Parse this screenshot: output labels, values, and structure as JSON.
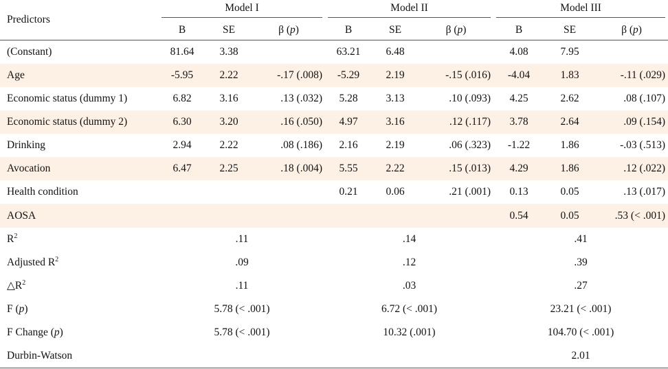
{
  "header": {
    "predictors": "Predictors",
    "models": [
      "Model I",
      "Model II",
      "Model III"
    ],
    "b": "B",
    "se": "SE",
    "beta": "β",
    "beta_p": "p"
  },
  "rows": [
    {
      "label": "(Constant)",
      "shaded": false,
      "cells": [
        "81.64",
        "3.38",
        "",
        "63.21",
        "6.48",
        "",
        "4.08",
        "7.95",
        ""
      ]
    },
    {
      "label": "Age",
      "shaded": true,
      "cells": [
        "-5.95",
        "2.22",
        "-.17 (.008)",
        "-5.29",
        "2.19",
        "-.15 (.016)",
        "-4.04",
        "1.83",
        "-.11 (.029)"
      ]
    },
    {
      "label": "Economic status (dummy 1)",
      "shaded": false,
      "cells": [
        "6.82",
        "3.16",
        ".13 (.032)",
        "5.28",
        "3.13",
        ".10 (.093)",
        "4.25",
        "2.62",
        ".08 (.107)"
      ]
    },
    {
      "label": "Economic status (dummy 2)",
      "shaded": true,
      "cells": [
        "6.30",
        "3.20",
        ".16 (.050)",
        "4.97",
        "3.16",
        ".12 (.117)",
        "3.78",
        "2.64",
        ".09 (.154)"
      ]
    },
    {
      "label": "Drinking",
      "shaded": false,
      "cells": [
        "2.94",
        "2.22",
        ".08 (.186)",
        "2.16",
        "2.19",
        ".06 (.323)",
        "-1.22",
        "1.86",
        "-.03 (.513)"
      ]
    },
    {
      "label": "Avocation",
      "shaded": true,
      "cells": [
        "6.47",
        "2.25",
        ".18 (.004)",
        "5.55",
        "2.22",
        ".15 (.013)",
        "4.29",
        "1.86",
        ".12 (.022)"
      ]
    },
    {
      "label": "Health condition",
      "shaded": false,
      "cells": [
        "",
        "",
        "",
        "0.21",
        "0.06",
        ".21 (.001)",
        "0.13",
        "0.05",
        ".13 (.017)"
      ]
    },
    {
      "label": " AOSA",
      "shaded": true,
      "cells": [
        "",
        "",
        "",
        "",
        "",
        "",
        "0.54",
        "0.05",
        ".53 (< .001)"
      ]
    }
  ],
  "stats": [
    {
      "key": "r2",
      "label_main": "R",
      "label_sup": "2",
      "label_prefix": "",
      "values": [
        ".11",
        ".14",
        ".41"
      ]
    },
    {
      "key": "adj_r2",
      "label_main": "Adjusted R",
      "label_sup": "2",
      "label_prefix": "",
      "values": [
        ".09",
        ".12",
        ".39"
      ]
    },
    {
      "key": "delta_r2",
      "label_main": "R",
      "label_sup": "2",
      "label_prefix": "△",
      "values": [
        ".11",
        ".03",
        ".27"
      ]
    },
    {
      "key": "f",
      "label_main": "F",
      "label_p": "p",
      "values": [
        "5.78 (< .001)",
        "6.72 (< .001)",
        "23.21 (< .001)"
      ]
    },
    {
      "key": "f_change",
      "label_main": "F Change",
      "label_p": "p",
      "values": [
        "5.78 (< .001)",
        "10.32 (.001)",
        "104.70 (< .001)"
      ]
    },
    {
      "key": "dw",
      "label_main": "Durbin-Watson",
      "values": [
        "",
        "",
        "2.01"
      ]
    }
  ]
}
